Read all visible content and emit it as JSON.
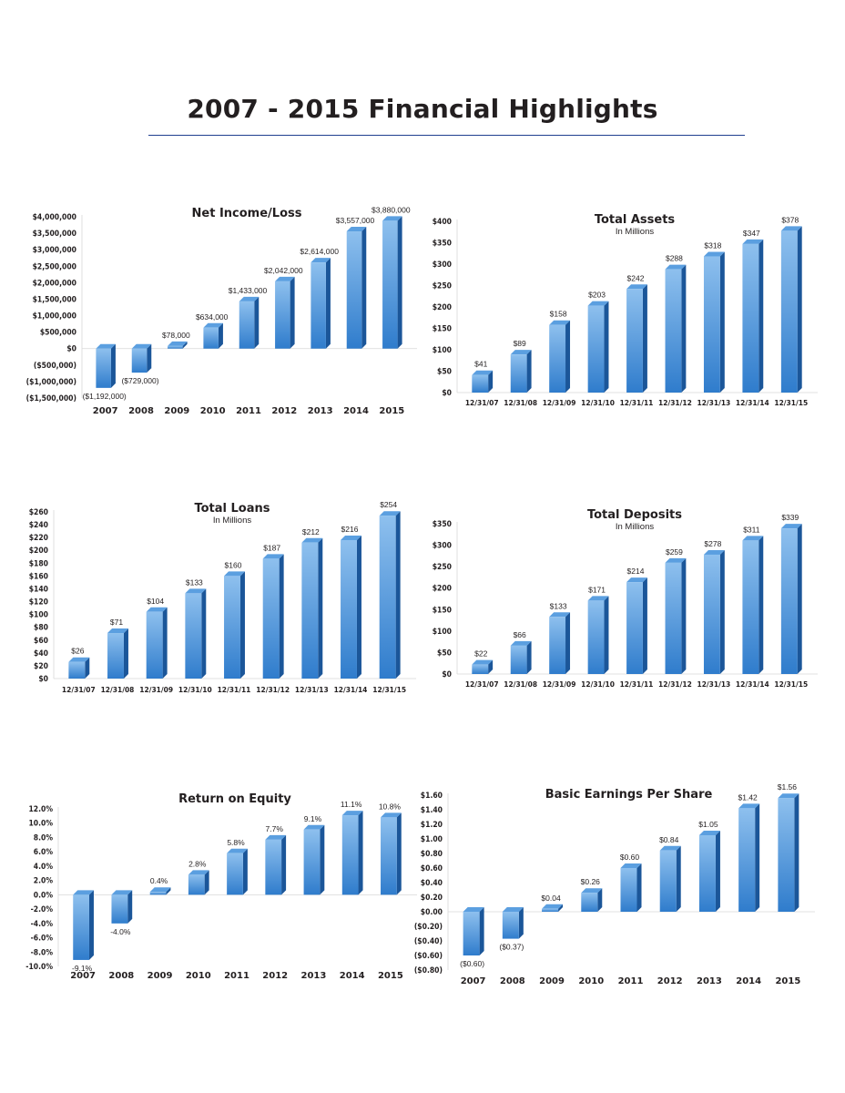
{
  "page": {
    "title": "2007 - 2015 Financial Highlights"
  },
  "colors": {
    "bar_top": "#5b9fe0",
    "bar_front": "#2f7ccc",
    "bar_side": "#1b5699",
    "rule": "#1f3f8f"
  },
  "chart_data": [
    {
      "id": "net-income",
      "type": "bar",
      "title": "Net Income/Loss",
      "subtitle": "",
      "categories": [
        "2007",
        "2008",
        "2009",
        "2010",
        "2011",
        "2012",
        "2013",
        "2014",
        "2015"
      ],
      "values": [
        -1192000,
        -729000,
        78000,
        634000,
        1433000,
        2042000,
        2614000,
        3557000,
        3880000
      ],
      "data_labels": [
        "($1,192,000)",
        "($729,000)",
        "$78,000",
        "$634,000",
        "$1,433,000",
        "$2,042,000",
        "$2,614,000",
        "$3,557,000",
        "$3,880,000"
      ],
      "ylim": [
        -1500000,
        4000000
      ],
      "yticks": [
        4000000,
        3500000,
        3000000,
        2500000,
        2000000,
        1500000,
        1000000,
        500000,
        0,
        -500000,
        -1000000,
        -1500000
      ],
      "ytick_labels": [
        "$4,000,000",
        "$3,500,000",
        "$3,000,000",
        "$2,500,000",
        "$2,000,000",
        "$1,500,000",
        "$1,000,000",
        "$500,000",
        "$0",
        "($500,000)",
        "($1,000,000)",
        "($1,500,000)"
      ],
      "grid": false
    },
    {
      "id": "total-assets",
      "type": "bar",
      "title": "Total Assets",
      "subtitle": "In Millions",
      "categories": [
        "12/31/07",
        "12/31/08",
        "12/31/09",
        "12/31/10",
        "12/31/11",
        "12/31/12",
        "12/31/13",
        "12/31/14",
        "12/31/15"
      ],
      "values": [
        41,
        89,
        158,
        203,
        242,
        288,
        318,
        347,
        378
      ],
      "data_labels": [
        "$41",
        "$89",
        "$158",
        "$203",
        "$242",
        "$288",
        "$318",
        "$347",
        "$378"
      ],
      "ylim": [
        0,
        400
      ],
      "yticks": [
        400,
        350,
        300,
        250,
        200,
        150,
        100,
        50,
        0
      ],
      "ytick_labels": [
        "$400",
        "$350",
        "$300",
        "$250",
        "$200",
        "$150",
        "$100",
        "$50",
        "$0"
      ],
      "grid": false
    },
    {
      "id": "total-loans",
      "type": "bar",
      "title": "Total Loans",
      "subtitle": "In Millions",
      "categories": [
        "12/31/07",
        "12/31/08",
        "12/31/09",
        "12/31/10",
        "12/31/11",
        "12/31/12",
        "12/31/13",
        "12/31/14",
        "12/31/15"
      ],
      "values": [
        26,
        71,
        104,
        133,
        160,
        187,
        212,
        216,
        254
      ],
      "data_labels": [
        "$26",
        "$71",
        "$104",
        "$133",
        "$160",
        "$187",
        "$212",
        "$216",
        "$254"
      ],
      "ylim": [
        0,
        260
      ],
      "yticks": [
        260,
        240,
        220,
        200,
        180,
        160,
        140,
        120,
        100,
        80,
        60,
        40,
        20,
        0
      ],
      "ytick_labels": [
        "$260",
        "$240",
        "$220",
        "$200",
        "$180",
        "$160",
        "$140",
        "$120",
        "$100",
        "$80",
        "$60",
        "$40",
        "$20",
        "$0"
      ],
      "grid": false
    },
    {
      "id": "total-deposits",
      "type": "bar",
      "title": "Total Deposits",
      "subtitle": "In Millions",
      "categories": [
        "12/31/07",
        "12/31/08",
        "12/31/09",
        "12/31/10",
        "12/31/11",
        "12/31/12",
        "12/31/13",
        "12/31/14",
        "12/31/15"
      ],
      "values": [
        22,
        66,
        133,
        171,
        214,
        259,
        278,
        311,
        339
      ],
      "data_labels": [
        "$22",
        "$66",
        "$133",
        "$171",
        "$214",
        "$259",
        "$278",
        "$311",
        "$339"
      ],
      "ylim": [
        0,
        350
      ],
      "yticks": [
        350,
        300,
        250,
        200,
        150,
        100,
        50,
        0
      ],
      "ytick_labels": [
        "$350",
        "$300",
        "$250",
        "$200",
        "$150",
        "$100",
        "$50",
        "$0"
      ],
      "grid": false
    },
    {
      "id": "return-on-equity",
      "type": "bar",
      "title": "Return on Equity",
      "subtitle": "",
      "categories": [
        "2007",
        "2008",
        "2009",
        "2010",
        "2011",
        "2012",
        "2013",
        "2014",
        "2015"
      ],
      "values": [
        -9.1,
        -4.0,
        0.4,
        2.8,
        5.8,
        7.7,
        9.1,
        11.1,
        10.8
      ],
      "data_labels": [
        "-9.1%",
        "-4.0%",
        "0.4%",
        "2.8%",
        "5.8%",
        "7.7%",
        "9.1%",
        "11.1%",
        "10.8%"
      ],
      "ylim": [
        -10,
        12
      ],
      "yticks": [
        12,
        10,
        8,
        6,
        4,
        2,
        0,
        -2,
        -4,
        -6,
        -8,
        -10
      ],
      "ytick_labels": [
        "12.0%",
        "10.0%",
        "8.0%",
        "6.0%",
        "4.0%",
        "2.0%",
        "0.0%",
        "-2.0%",
        "-4.0%",
        "-6.0%",
        "-8.0%",
        "-10.0%"
      ],
      "grid": false
    },
    {
      "id": "basic-eps",
      "type": "bar",
      "title": "Basic Earnings Per Share",
      "subtitle": "",
      "categories": [
        "2007",
        "2008",
        "2009",
        "2010",
        "2011",
        "2012",
        "2013",
        "2014",
        "2015"
      ],
      "values": [
        -0.6,
        -0.37,
        0.04,
        0.26,
        0.6,
        0.84,
        1.05,
        1.42,
        1.56
      ],
      "data_labels": [
        "($0.60)",
        "($0.37)",
        "$0.04",
        "$0.26",
        "$0.60",
        "$0.84",
        "$1.05",
        "$1.42",
        "$1.56"
      ],
      "ylim": [
        -0.8,
        1.6
      ],
      "yticks": [
        1.6,
        1.4,
        1.2,
        1.0,
        0.8,
        0.6,
        0.4,
        0.2,
        0,
        -0.2,
        -0.4,
        -0.6,
        -0.8
      ],
      "ytick_labels": [
        "$1.60",
        "$1.40",
        "$1.20",
        "$1.00",
        "$0.80",
        "$0.60",
        "$0.40",
        "$0.20",
        "$0.00",
        "($0.20)",
        "($0.40)",
        "($0.60)",
        "($0.80)"
      ],
      "grid": false
    }
  ]
}
